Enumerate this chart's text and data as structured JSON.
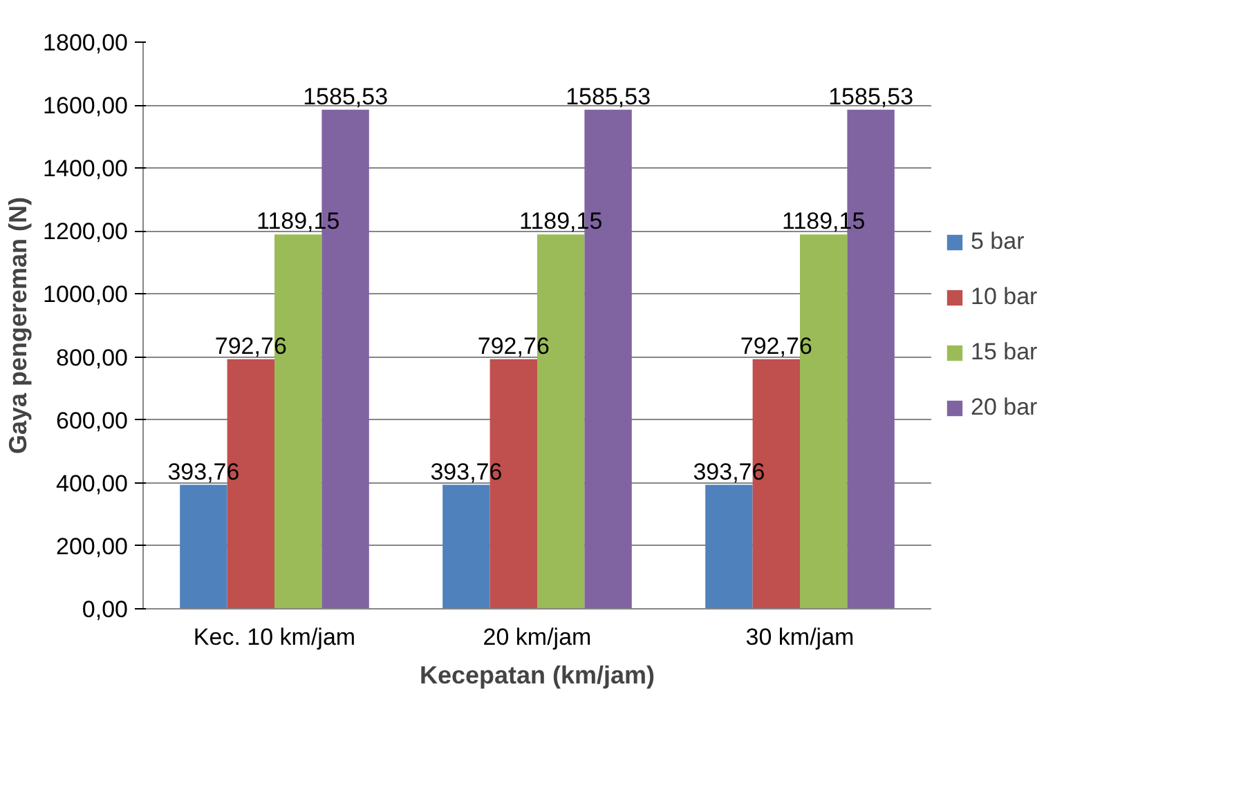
{
  "chart_data": {
    "type": "bar",
    "xlabel": "Kecepatan (km/jam)",
    "ylabel": "Gaya pengereman (N)",
    "categories": [
      "Kec. 10 km/jam",
      "20 km/jam",
      "30 km/jam"
    ],
    "series": [
      {
        "name": "5 bar",
        "color": "#4f81bd",
        "values": [
          393.76,
          393.76,
          393.76
        ],
        "value_labels": [
          "393,76",
          "393,76",
          "393,76"
        ]
      },
      {
        "name": "10 bar",
        "color": "#c0504d",
        "values": [
          792.76,
          792.76,
          792.76
        ],
        "value_labels": [
          "792,76",
          "792,76",
          "792,76"
        ]
      },
      {
        "name": "15 bar",
        "color": "#9bbb59",
        "values": [
          1189.15,
          1189.15,
          1189.15
        ],
        "value_labels": [
          "1189,15",
          "1189,15",
          "1189,15"
        ]
      },
      {
        "name": "20 bar",
        "color": "#8064a2",
        "values": [
          1585.53,
          1585.53,
          1585.53
        ],
        "value_labels": [
          "1585,53",
          "1585,53",
          "1585,53"
        ]
      }
    ],
    "ylim": [
      0,
      1800
    ],
    "yticks": [
      {
        "value": 0,
        "label": "0,00"
      },
      {
        "value": 200,
        "label": "200,00"
      },
      {
        "value": 400,
        "label": "400,00"
      },
      {
        "value": 600,
        "label": "600,00"
      },
      {
        "value": 800,
        "label": "800,00"
      },
      {
        "value": 1000,
        "label": "1000,00"
      },
      {
        "value": 1200,
        "label": "1200,00"
      },
      {
        "value": 1400,
        "label": "1400,00"
      },
      {
        "value": 1600,
        "label": "1600,00"
      },
      {
        "value": 1800,
        "label": "1800,00"
      }
    ],
    "grid": "y",
    "legend": "right"
  }
}
